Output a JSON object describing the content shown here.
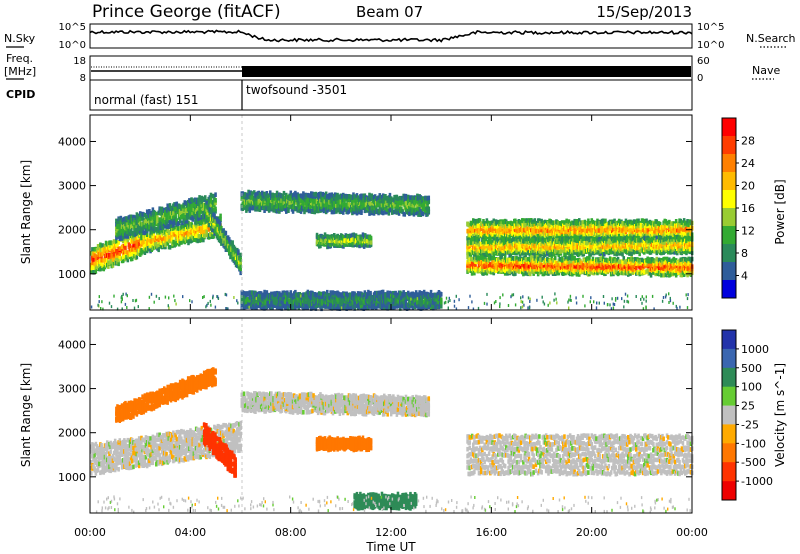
{
  "header": {
    "station": "Prince George (fitACF)",
    "beam": "Beam 07",
    "date": "15/Sep/2013"
  },
  "left_labels": {
    "nsky": "N.Sky",
    "freq_line1": "Freq.",
    "freq_line2": "[MHz]",
    "cpid": "CPID"
  },
  "right_labels": {
    "nsearch": "N.Search",
    "nave": "Nave"
  },
  "noise_panel": {
    "left_ticks": [
      "10^5",
      "10^0"
    ],
    "right_ticks": [
      "10^5",
      "10^0"
    ]
  },
  "freq_panel": {
    "left_ticks": [
      "18",
      "8"
    ],
    "right_ticks": [
      "60",
      "0"
    ]
  },
  "cpid_segments": [
    {
      "label": "normal (fast) 151",
      "start_hour": 0,
      "end_hour": 6
    },
    {
      "label": "twofsound -3501",
      "start_hour": 6,
      "end_hour": 24
    }
  ],
  "axes": {
    "ylabel": "Slant Range [km]",
    "xlabel": "Time UT",
    "x_tick_labels": [
      "00:00",
      "04:00",
      "08:00",
      "12:00",
      "16:00",
      "20:00",
      "00:00"
    ],
    "y_tick_labels": [
      "1000",
      "2000",
      "3000",
      "4000"
    ]
  },
  "power_colorbar": {
    "label": "Power [dB]",
    "ticks": [
      "28",
      "24",
      "20",
      "16",
      "12",
      "8",
      "4"
    ],
    "colors": [
      "#ff0000",
      "#ff3d00",
      "#ff8000",
      "#ffbb00",
      "#ffff00",
      "#99cc33",
      "#33aa33",
      "#2a8a5a",
      "#2f5d9a",
      "#0000dd"
    ]
  },
  "velocity_colorbar": {
    "label": "Velocity [m s^-1]",
    "ticks": [
      "1000",
      "500",
      "100",
      "25",
      "-25",
      "-100",
      "-500",
      "-1000"
    ],
    "colors": [
      "#2233aa",
      "#3a66b0",
      "#2e8b57",
      "#66cc33",
      "#c0c0c0",
      "#ffaa00",
      "#ff7700",
      "#ff3300",
      "#ee0000"
    ]
  },
  "chart_data": {
    "type": "heatmap",
    "title": "",
    "xlabel": "Time UT",
    "ylabel": "Slant Range [km]",
    "xlim": [
      0,
      24
    ],
    "ylim": [
      180,
      4600
    ],
    "panels": [
      {
        "name": "Power [dB]",
        "clim": [
          0,
          30
        ],
        "echo_bands": [
          {
            "t_start": 0.0,
            "t_end": 2.0,
            "range_center": [
              1300,
              1700
            ],
            "width_km": 500,
            "peak_dB": 28
          },
          {
            "t_start": 2.0,
            "t_end": 5.2,
            "range_center": [
              1700,
              2100
            ],
            "width_km": 400,
            "peak_dB": 22
          },
          {
            "t_start": 1.0,
            "t_end": 5.0,
            "range_center": [
              2000,
              2600
            ],
            "width_km": 400,
            "peak_dB": 12
          },
          {
            "t_start": 4.6,
            "t_end": 6.0,
            "range_center": [
              2400,
              1200
            ],
            "width_km": 350,
            "peak_dB": 14
          },
          {
            "t_start": 6.0,
            "t_end": 13.5,
            "range_center": [
              2650,
              2550
            ],
            "width_km": 350,
            "peak_dB": 12
          },
          {
            "t_start": 9.0,
            "t_end": 11.2,
            "range_center": [
              1750,
              1750
            ],
            "width_km": 200,
            "peak_dB": 16
          },
          {
            "t_start": 15.0,
            "t_end": 24.0,
            "range_center": [
              2000,
              2000
            ],
            "width_km": 350,
            "peak_dB": 24
          },
          {
            "t_start": 15.0,
            "t_end": 24.0,
            "range_center": [
              1600,
              1650
            ],
            "width_km": 300,
            "peak_dB": 22
          },
          {
            "t_start": 15.0,
            "t_end": 24.0,
            "range_center": [
              1200,
              1150
            ],
            "width_km": 300,
            "peak_dB": 28
          },
          {
            "t_start": 6.0,
            "t_end": 14.0,
            "range_center": [
              400,
              400
            ],
            "width_km": 300,
            "peak_dB": 8
          }
        ]
      },
      {
        "name": "Velocity [m s^-1]",
        "clim": [
          -1000,
          1000
        ],
        "echo_bands": [
          {
            "t_start": 0.0,
            "t_end": 6.0,
            "range_center": [
              1400,
              1900
            ],
            "width_km": 600,
            "velocity": 0
          },
          {
            "t_start": 1.0,
            "t_end": 5.0,
            "range_center": [
              2400,
              3300
            ],
            "width_km": 300,
            "velocity": -300
          },
          {
            "t_start": 4.5,
            "t_end": 5.8,
            "range_center": [
              2000,
              1200
            ],
            "width_km": 400,
            "velocity": -600
          },
          {
            "t_start": 6.0,
            "t_end": 13.5,
            "range_center": [
              2700,
              2600
            ],
            "width_km": 350,
            "velocity": 0
          },
          {
            "t_start": 9.0,
            "t_end": 11.2,
            "range_center": [
              1750,
              1750
            ],
            "width_km": 200,
            "velocity": -200
          },
          {
            "t_start": 15.0,
            "t_end": 24.0,
            "range_center": [
              1500,
              1500
            ],
            "width_km": 800,
            "velocity": 0
          },
          {
            "t_start": 10.5,
            "t_end": 13.0,
            "range_center": [
              450,
              450
            ],
            "width_km": 250,
            "velocity": 150
          }
        ]
      }
    ]
  }
}
